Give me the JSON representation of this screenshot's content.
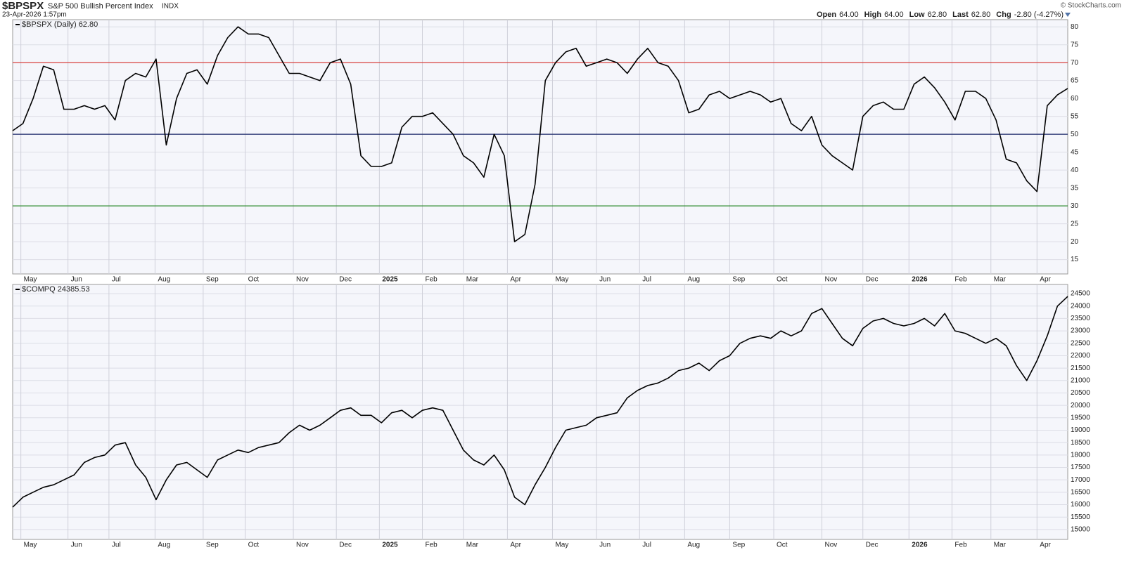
{
  "header": {
    "symbol": "$BPSPX",
    "name": "S&P 500 Bullish Percent Index",
    "exchange": "INDX",
    "timestamp": "23-Apr-2026 1:57pm",
    "source": "© StockCharts.com",
    "quote": [
      {
        "label": "Open",
        "value": "64.00"
      },
      {
        "label": "High",
        "value": "64.00"
      },
      {
        "label": "Low",
        "value": "62.80"
      },
      {
        "label": "Last",
        "value": "62.80"
      },
      {
        "label": "Chg",
        "value": "-2.80 (-4.27%)"
      }
    ]
  },
  "chart_data": [
    {
      "type": "line",
      "grid": true,
      "series": [
        {
          "name": "$BPSPX (Daily) 62.80",
          "color": "#000000",
          "values": [
            51,
            53,
            60,
            69,
            68,
            57,
            57,
            58,
            57,
            58,
            54,
            65,
            67,
            66,
            71,
            47,
            60,
            67,
            68,
            64,
            72,
            77,
            80,
            78,
            78,
            77,
            72,
            67,
            67,
            66,
            65,
            70,
            71,
            64,
            44,
            41,
            41,
            42,
            52,
            55,
            55,
            56,
            53,
            50,
            44,
            42,
            38,
            50,
            44,
            20,
            22,
            36,
            65,
            70,
            73,
            74,
            69,
            70,
            71,
            70,
            67,
            71,
            74,
            70,
            69,
            65,
            56,
            57,
            61,
            62,
            60,
            61,
            62,
            61,
            59,
            60,
            53,
            51,
            55,
            47,
            44,
            42,
            40,
            55,
            58,
            59,
            57,
            57,
            64,
            66,
            63,
            59,
            54,
            62,
            62,
            60,
            54,
            43,
            42,
            37,
            34,
            58,
            61,
            62.8
          ]
        }
      ],
      "reference_lines": [
        {
          "value": 70,
          "color": "#d9302c"
        },
        {
          "value": 50,
          "color": "#1f2a6b"
        },
        {
          "value": 30,
          "color": "#2d8a2d"
        }
      ],
      "xlim": [
        0,
        103
      ],
      "xticks": [
        {
          "value": 0.8,
          "label": "May"
        },
        {
          "value": 5.4,
          "label": "Jun"
        },
        {
          "value": 9.4,
          "label": "Jul"
        },
        {
          "value": 13.9,
          "label": "Aug"
        },
        {
          "value": 18.6,
          "label": "Sep"
        },
        {
          "value": 22.7,
          "label": "Oct"
        },
        {
          "value": 27.4,
          "label": "Nov"
        },
        {
          "value": 31.6,
          "label": "Dec"
        },
        {
          "value": 35.8,
          "label": "2025"
        },
        {
          "value": 40,
          "label": "Feb"
        },
        {
          "value": 44,
          "label": "Mar"
        },
        {
          "value": 48.3,
          "label": "Apr"
        },
        {
          "value": 52.7,
          "label": "May"
        },
        {
          "value": 57,
          "label": "Jun"
        },
        {
          "value": 61.2,
          "label": "Jul"
        },
        {
          "value": 65.6,
          "label": "Aug"
        },
        {
          "value": 70,
          "label": "Sep"
        },
        {
          "value": 74.3,
          "label": "Oct"
        },
        {
          "value": 79,
          "label": "Nov"
        },
        {
          "value": 83,
          "label": "Dec"
        },
        {
          "value": 87.5,
          "label": "2026"
        },
        {
          "value": 91.7,
          "label": "Feb"
        },
        {
          "value": 95.5,
          "label": "Mar"
        },
        {
          "value": 100,
          "label": "Apr"
        }
      ],
      "ylim": [
        11,
        82
      ],
      "yticks": [
        15,
        20,
        25,
        30,
        35,
        40,
        45,
        50,
        55,
        60,
        65,
        70,
        75,
        80
      ]
    },
    {
      "type": "line",
      "grid": true,
      "series": [
        {
          "name": "$COMPQ 24385.53",
          "color": "#000000",
          "values": [
            15900,
            16300,
            16500,
            16700,
            16800,
            17000,
            17200,
            17700,
            17900,
            18000,
            18400,
            18500,
            17600,
            17100,
            16200,
            17000,
            17600,
            17700,
            17400,
            17100,
            17800,
            18000,
            18200,
            18100,
            18300,
            18400,
            18500,
            18900,
            19200,
            19000,
            19200,
            19500,
            19800,
            19900,
            19600,
            19600,
            19300,
            19700,
            19800,
            19500,
            19800,
            19900,
            19800,
            19000,
            18200,
            17800,
            17600,
            18000,
            17400,
            16300,
            16000,
            16800,
            17500,
            18300,
            19000,
            19100,
            19200,
            19500,
            19600,
            19700,
            20300,
            20600,
            20800,
            20900,
            21100,
            21400,
            21500,
            21700,
            21400,
            21800,
            22000,
            22500,
            22700,
            22800,
            22700,
            23000,
            22800,
            23000,
            23700,
            23900,
            23300,
            22700,
            22400,
            23100,
            23400,
            23500,
            23300,
            23200,
            23300,
            23500,
            23200,
            23700,
            23000,
            22900,
            22700,
            22500,
            22700,
            22400,
            21600,
            21000,
            21800,
            22800,
            24000,
            24385.53
          ]
        }
      ],
      "reference_lines": [],
      "xlim": [
        0,
        103
      ],
      "xticks": [
        {
          "value": 0.8,
          "label": "May"
        },
        {
          "value": 5.4,
          "label": "Jun"
        },
        {
          "value": 9.4,
          "label": "Jul"
        },
        {
          "value": 13.9,
          "label": "Aug"
        },
        {
          "value": 18.6,
          "label": "Sep"
        },
        {
          "value": 22.7,
          "label": "Oct"
        },
        {
          "value": 27.4,
          "label": "Nov"
        },
        {
          "value": 31.6,
          "label": "Dec"
        },
        {
          "value": 35.8,
          "label": "2025"
        },
        {
          "value": 40,
          "label": "Feb"
        },
        {
          "value": 44,
          "label": "Mar"
        },
        {
          "value": 48.3,
          "label": "Apr"
        },
        {
          "value": 52.7,
          "label": "May"
        },
        {
          "value": 57,
          "label": "Jun"
        },
        {
          "value": 61.2,
          "label": "Jul"
        },
        {
          "value": 65.6,
          "label": "Aug"
        },
        {
          "value": 70,
          "label": "Sep"
        },
        {
          "value": 74.3,
          "label": "Oct"
        },
        {
          "value": 79,
          "label": "Nov"
        },
        {
          "value": 83,
          "label": "Dec"
        },
        {
          "value": 87.5,
          "label": "2026"
        },
        {
          "value": 91.7,
          "label": "Feb"
        },
        {
          "value": 95.5,
          "label": "Mar"
        },
        {
          "value": 100,
          "label": "Apr"
        }
      ],
      "ylim": [
        14600,
        24870
      ],
      "yticks": [
        15000,
        15500,
        16000,
        16500,
        17000,
        17500,
        18000,
        18500,
        19000,
        19500,
        20000,
        20500,
        21000,
        21500,
        22000,
        22500,
        23000,
        23500,
        24000,
        24500
      ]
    }
  ]
}
